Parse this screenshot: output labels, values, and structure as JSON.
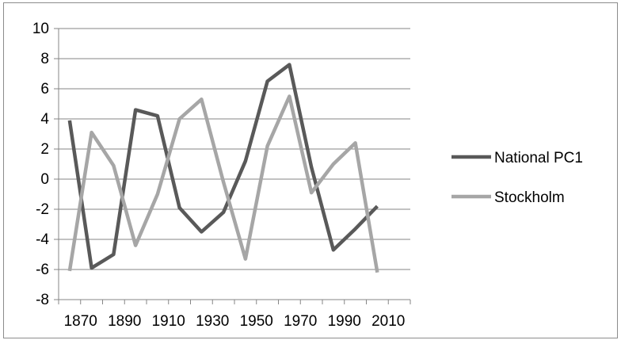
{
  "chart_data": {
    "type": "line",
    "x": [
      1865,
      1875,
      1885,
      1895,
      1905,
      1915,
      1925,
      1935,
      1945,
      1955,
      1965,
      1975,
      1985,
      1995,
      2005
    ],
    "series": [
      {
        "name": "National PC1",
        "color": "#595959",
        "values": [
          3.9,
          -5.9,
          -5.0,
          4.6,
          4.2,
          -1.9,
          -3.5,
          -2.2,
          1.2,
          6.5,
          7.6,
          0.8,
          -4.7,
          -3.3,
          -1.8
        ]
      },
      {
        "name": "Stockholm",
        "color": "#a6a6a6",
        "values": [
          -6.1,
          3.1,
          0.9,
          -4.4,
          -1.0,
          4.0,
          5.3,
          -0.2,
          -5.3,
          2.2,
          5.5,
          -0.9,
          1.0,
          2.4,
          -6.2
        ]
      }
    ],
    "x_ticks": [
      "1870",
      "1890",
      "1910",
      "1930",
      "1950",
      "1970",
      "1990",
      "2010"
    ],
    "y_ticks": [
      "10",
      "8",
      "6",
      "4",
      "2",
      "0",
      "-2",
      "-4",
      "-6",
      "-8"
    ],
    "ylim": [
      -8,
      10
    ],
    "xlim": [
      1860,
      2020
    ],
    "grid": "horizontal",
    "legend_position": "right"
  }
}
